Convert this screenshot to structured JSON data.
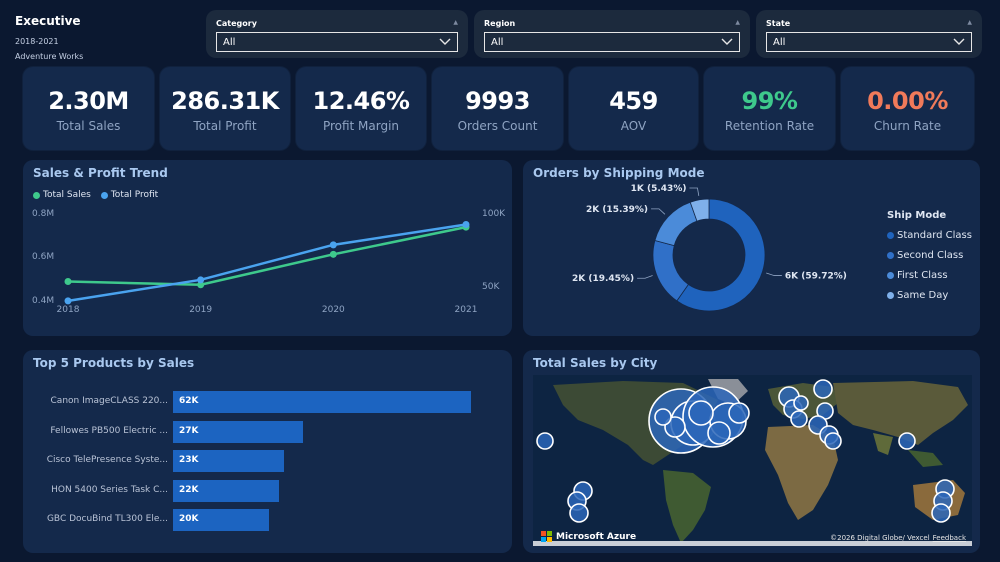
{
  "header": {
    "title": "Executive",
    "years": "2018-2021",
    "company": "Adventure Works"
  },
  "filters": [
    {
      "label": "Category",
      "value": "All"
    },
    {
      "label": "Region",
      "value": "All"
    },
    {
      "label": "State",
      "value": "All"
    }
  ],
  "kpis": [
    {
      "value": "2.30M",
      "label": "Total Sales",
      "color": "#ffffff"
    },
    {
      "value": "286.31K",
      "label": "Total Profit",
      "color": "#ffffff"
    },
    {
      "value": "12.46%",
      "label": "Profit Margin",
      "color": "#ffffff"
    },
    {
      "value": "9993",
      "label": "Orders Count",
      "color": "#ffffff"
    },
    {
      "value": "459",
      "label": "AOV",
      "color": "#ffffff"
    },
    {
      "value": "99%",
      "label": "Retention Rate",
      "color": "#3ec98c"
    },
    {
      "value": "0.00%",
      "label": "Churn Rate",
      "color": "#f07a5a"
    }
  ],
  "trend": {
    "title": "Sales & Profit Trend",
    "legend": [
      "Total Sales",
      "Total Profit"
    ],
    "left_ticks": [
      "0.8M",
      "0.6M",
      "0.4M"
    ],
    "right_ticks": [
      "100K",
      "50K"
    ],
    "chart_data": {
      "type": "line",
      "x": [
        "2018",
        "2019",
        "2020",
        "2021"
      ],
      "series": [
        {
          "name": "Total Sales",
          "axis": "left",
          "values": [
            0.485,
            0.47,
            0.61,
            0.735
          ],
          "color": "#3ec98c"
        },
        {
          "name": "Total Profit",
          "axis": "right",
          "values": [
            49.5,
            61.6,
            81.7,
            93.4
          ],
          "color": "#4aa3ef"
        }
      ],
      "ylim_left": [
        0.4,
        0.8
      ],
      "ylim_right": [
        50,
        100
      ]
    }
  },
  "shipping": {
    "title": "Orders by Shipping Mode",
    "legend_title": "Ship Mode",
    "chart_data": {
      "type": "pie",
      "categories": [
        "Standard Class",
        "Second Class",
        "First Class",
        "Same Day"
      ],
      "values": [
        59.72,
        19.45,
        15.39,
        5.43
      ],
      "labels": [
        "6K (59.72%)",
        "2K (19.45%)",
        "2K (15.39%)",
        "1K (5.43%)"
      ],
      "colors": [
        "#1f63bd",
        "#3070c8",
        "#4b8bd9",
        "#7fb0ea"
      ]
    }
  },
  "products": {
    "title": "Top 5 Products by Sales",
    "chart_data": {
      "type": "bar",
      "categories": [
        "Canon ImageCLASS 220...",
        "Fellowes PB500 Electric ...",
        "Cisco TelePresence Syste...",
        "HON 5400 Series Task C...",
        "GBC DocuBind TL300 Ele..."
      ],
      "values": [
        62,
        27,
        23,
        22,
        20
      ],
      "labels": [
        "62K",
        "27K",
        "23K",
        "22K",
        "20K"
      ],
      "xlim": [
        0,
        62
      ]
    }
  },
  "city_map": {
    "title": "Total Sales by City",
    "brand": "Microsoft Azure",
    "credit": "©2026 Digital Globe/ Vexcel",
    "feedback": "Feedback"
  }
}
